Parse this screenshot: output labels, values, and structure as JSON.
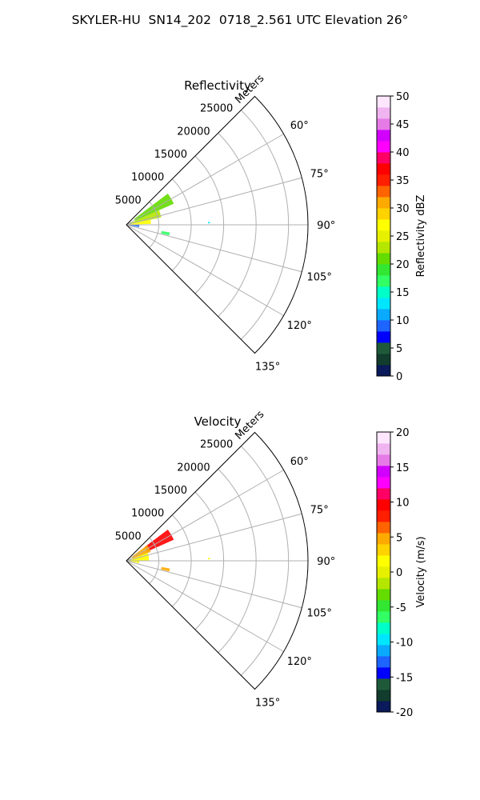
{
  "figure": {
    "title": "SKYLER-HU  SN14_202  0718_2.561 UTC Elevation 26°"
  },
  "colors": {
    "grid": "#b0b0b0",
    "frame": "#000000",
    "background": "#ffffff"
  },
  "chart_data": [
    {
      "type": "heatmap",
      "projection": "polar-sector",
      "title": "Reflectivity",
      "radial_label": "Meters",
      "r_ticks": [
        5000,
        10000,
        15000,
        20000,
        25000
      ],
      "r_max": 28000,
      "theta_ticks": [
        "60°",
        "75°",
        "90°",
        "105°",
        "120°",
        "135°"
      ],
      "theta_range_deg": [
        45,
        135
      ],
      "colorbar": {
        "label": "Reflectivity dBZ",
        "range": [
          0,
          50
        ],
        "ticks": [
          0,
          5,
          10,
          15,
          20,
          25,
          30,
          35,
          40,
          45,
          50
        ],
        "colors": [
          "#0a1a5a",
          "#123c2e",
          "#1e5a3a",
          "#0000ff",
          "#1e64ff",
          "#0aaaff",
          "#00e6ff",
          "#00ffc8",
          "#32ff64",
          "#32e632",
          "#64dc00",
          "#b4e600",
          "#e6f000",
          "#ffff00",
          "#ffd200",
          "#ffaa00",
          "#ff6400",
          "#ff1e00",
          "#ff0000",
          "#ff0064",
          "#ff00ff",
          "#d200ff",
          "#e67ae6",
          "#f0b4f0",
          "#ffe6ff"
        ]
      },
      "echo_regions": [
        {
          "az_deg": [
            53,
            66
          ],
          "range_m": [
            1500,
            8000
          ],
          "value": 20
        },
        {
          "az_deg": [
            66,
            78
          ],
          "range_m": [
            500,
            5500
          ],
          "value": 22
        },
        {
          "az_deg": [
            78,
            88
          ],
          "range_m": [
            300,
            3800
          ],
          "value": 26
        },
        {
          "az_deg": [
            88,
            100
          ],
          "range_m": [
            300,
            2000
          ],
          "value": 8
        },
        {
          "az_deg": [
            100,
            104
          ],
          "range_m": [
            5500,
            6800
          ],
          "value": 16
        },
        {
          "az_deg": [
            88,
            89
          ],
          "range_m": [
            12600,
            12900
          ],
          "value": 12
        }
      ]
    },
    {
      "type": "heatmap",
      "projection": "polar-sector",
      "title": "Velocity",
      "radial_label": "Meters",
      "r_ticks": [
        5000,
        10000,
        15000,
        20000,
        25000
      ],
      "r_max": 28000,
      "theta_ticks": [
        "60°",
        "75°",
        "90°",
        "105°",
        "120°",
        "135°"
      ],
      "theta_range_deg": [
        45,
        135
      ],
      "colorbar": {
        "label": "Velocity (m/s)",
        "range": [
          -20,
          20
        ],
        "ticks": [
          -20,
          -15,
          -10,
          -5,
          0,
          5,
          10,
          15,
          20
        ],
        "colors": [
          "#0a1a5a",
          "#123c2e",
          "#1e5a3a",
          "#0000ff",
          "#1e64ff",
          "#0aaaff",
          "#00e6ff",
          "#00ffc8",
          "#32ff64",
          "#32e632",
          "#64dc00",
          "#b4e600",
          "#e6f000",
          "#ffff00",
          "#ffd200",
          "#ffaa00",
          "#ff6400",
          "#ff1e00",
          "#ff0000",
          "#ff0064",
          "#ff00ff",
          "#d200ff",
          "#e67ae6",
          "#f0b4f0",
          "#ffe6ff"
        ]
      },
      "echo_regions": [
        {
          "az_deg": [
            53,
            66
          ],
          "range_m": [
            3500,
            8000
          ],
          "value": 10
        },
        {
          "az_deg": [
            53,
            70
          ],
          "range_m": [
            1000,
            4000
          ],
          "value": 4
        },
        {
          "az_deg": [
            70,
            90
          ],
          "range_m": [
            300,
            3500
          ],
          "value": 2
        },
        {
          "az_deg": [
            90,
            100
          ],
          "range_m": [
            300,
            2000
          ],
          "value": 1
        },
        {
          "az_deg": [
            100,
            104
          ],
          "range_m": [
            5500,
            6800
          ],
          "value": 5
        },
        {
          "az_deg": [
            88,
            89
          ],
          "range_m": [
            12600,
            12900
          ],
          "value": 1
        }
      ]
    }
  ]
}
